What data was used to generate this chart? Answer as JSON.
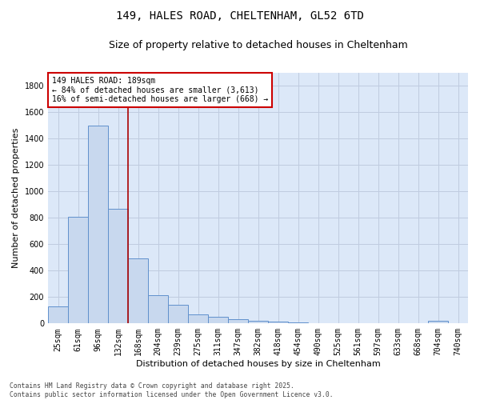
{
  "title1": "149, HALES ROAD, CHELTENHAM, GL52 6TD",
  "title2": "Size of property relative to detached houses in Cheltenham",
  "xlabel": "Distribution of detached houses by size in Cheltenham",
  "ylabel": "Number of detached properties",
  "footnote": "Contains HM Land Registry data © Crown copyright and database right 2025.\nContains public sector information licensed under the Open Government Licence v3.0.",
  "bin_labels": [
    "25sqm",
    "61sqm",
    "96sqm",
    "132sqm",
    "168sqm",
    "204sqm",
    "239sqm",
    "275sqm",
    "311sqm",
    "347sqm",
    "382sqm",
    "418sqm",
    "454sqm",
    "490sqm",
    "525sqm",
    "561sqm",
    "597sqm",
    "633sqm",
    "668sqm",
    "704sqm",
    "740sqm"
  ],
  "bar_values": [
    130,
    810,
    1500,
    870,
    490,
    215,
    140,
    70,
    50,
    30,
    20,
    15,
    10,
    5,
    3,
    3,
    2,
    1,
    1,
    20,
    0
  ],
  "bar_color": "#c8d8ee",
  "bar_edge_color": "#6090cc",
  "vline_x": 3.5,
  "vline_color": "#aa0000",
  "annotation_text": "149 HALES ROAD: 189sqm\n← 84% of detached houses are smaller (3,613)\n16% of semi-detached houses are larger (668) →",
  "annotation_box_color": "white",
  "annotation_box_edge": "#cc0000",
  "ylim": [
    0,
    1900
  ],
  "yticks": [
    0,
    200,
    400,
    600,
    800,
    1000,
    1200,
    1400,
    1600,
    1800
  ],
  "grid_color": "#c0cce0",
  "bg_color": "#dce8f8",
  "title1_fontsize": 10,
  "title2_fontsize": 9,
  "axis_label_fontsize": 8,
  "tick_fontsize": 7,
  "annot_fontsize": 7
}
